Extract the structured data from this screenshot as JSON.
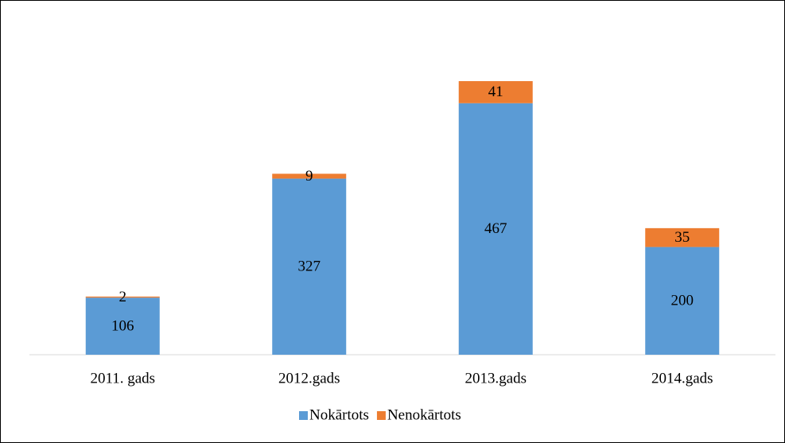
{
  "chart_data": {
    "type": "stacked_bar",
    "categories": [
      "2011. gads",
      "2012.gads",
      "2013.gads",
      "2014.gads"
    ],
    "series": [
      {
        "name": "Nokārtots",
        "color": "#5b9bd5",
        "values": [
          106,
          327,
          467,
          200
        ]
      },
      {
        "name": "Nenokārtots",
        "color": "#ed7d31",
        "values": [
          2,
          9,
          41,
          35
        ]
      }
    ],
    "legend": "bottom"
  }
}
